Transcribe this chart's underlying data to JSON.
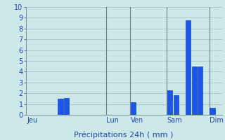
{
  "xlabel": "Précipitations 24h ( mm )",
  "background_color": "#cce8e8",
  "grid_color": "#aacccc",
  "bar_color": "#1a56e8",
  "bar_edge_color": "#0030b0",
  "ylim": [
    0,
    10
  ],
  "yticks": [
    0,
    1,
    2,
    3,
    4,
    5,
    6,
    7,
    8,
    9,
    10
  ],
  "day_labels": [
    "Jeu",
    "Lun",
    "Ven",
    "Sam",
    "Dim"
  ],
  "day_tick_positions": [
    0,
    13,
    17,
    23,
    30
  ],
  "n_bars": 32,
  "bars": [
    0,
    0,
    0,
    0,
    0,
    1.5,
    1.55,
    0,
    0,
    0,
    0,
    0,
    0,
    0,
    0,
    0,
    0,
    1.2,
    0,
    0,
    0,
    0,
    0,
    2.3,
    1.85,
    0,
    8.75,
    4.5,
    4.5,
    0,
    0.65,
    0
  ],
  "vline_positions": [
    13,
    17,
    23,
    30
  ],
  "figsize": [
    3.2,
    2.0
  ],
  "dpi": 100
}
